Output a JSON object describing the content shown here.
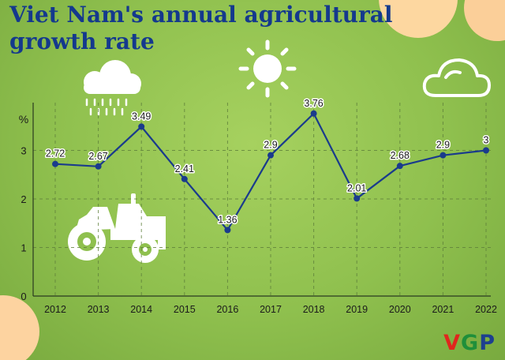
{
  "title_lines": [
    "Viet Nam's annual agricultural",
    "growth rate"
  ],
  "brand": {
    "v": "V",
    "g": "G",
    "p": "P"
  },
  "icons": [
    "rain-cloud-icon",
    "sun-icon",
    "cloud-icon",
    "tractor-icon"
  ],
  "colors": {
    "line": "#1a3b8c",
    "marker": "#1a3b8c",
    "title": "#14398d",
    "background": "#8fc04e"
  },
  "chart_data": {
    "type": "line",
    "ylabel": "%",
    "ylim": [
      0,
      4
    ],
    "yticks": [
      0,
      1,
      2,
      3
    ],
    "grid": true,
    "categories": [
      "2012",
      "2013",
      "2014",
      "2015",
      "2016",
      "2017",
      "2018",
      "2019",
      "2020",
      "2021",
      "2022"
    ],
    "values": [
      2.72,
      2.67,
      3.49,
      2.41,
      1.36,
      2.9,
      3.76,
      2.01,
      2.68,
      2.9,
      3
    ],
    "data_labels": [
      "2.72",
      "2.67",
      "3.49",
      "2.41",
      "1.36",
      "2.9",
      "3.76",
      "2.01",
      "2.68",
      "2.9",
      "3"
    ]
  }
}
